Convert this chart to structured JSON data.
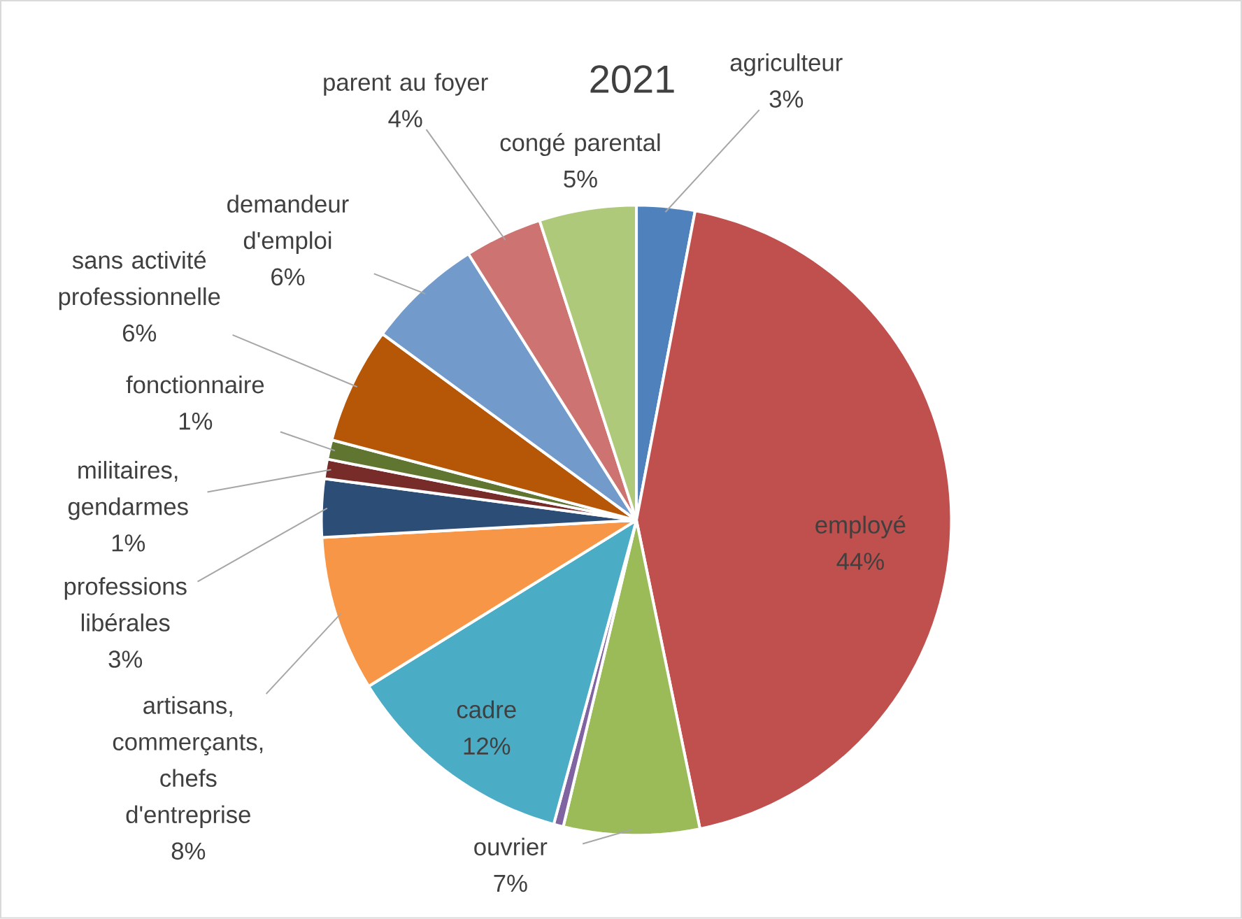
{
  "chart_data": {
    "type": "pie",
    "title": "2021",
    "categories": [
      "agriculteur",
      "employé",
      "ouvrier",
      null,
      "cadre",
      "artisans, commerçants, chefs d'entreprise",
      "professions libérales",
      "militaires, gendarmes",
      "fonctionnaire",
      "sans activité professionnelle",
      "demandeur d'emploi",
      "parent au foyer",
      "congé parental"
    ],
    "values": [
      3,
      44,
      7,
      0.5,
      12,
      8,
      3,
      1,
      1,
      6,
      6,
      4,
      5
    ],
    "value_labels": [
      "3%",
      "44%",
      "7%",
      null,
      "12%",
      "8%",
      "3%",
      "1%",
      "1%",
      "6%",
      "6%",
      "4%",
      "5%"
    ],
    "colors": [
      "#4f81bd",
      "#c0504d",
      "#9bbb59",
      "#8064a2",
      "#4bacc6",
      "#f79646",
      "#2c4d75",
      "#772c2a",
      "#5f7530",
      "#b65708",
      "#729aca",
      "#cd7371",
      "#afc97a"
    ]
  }
}
